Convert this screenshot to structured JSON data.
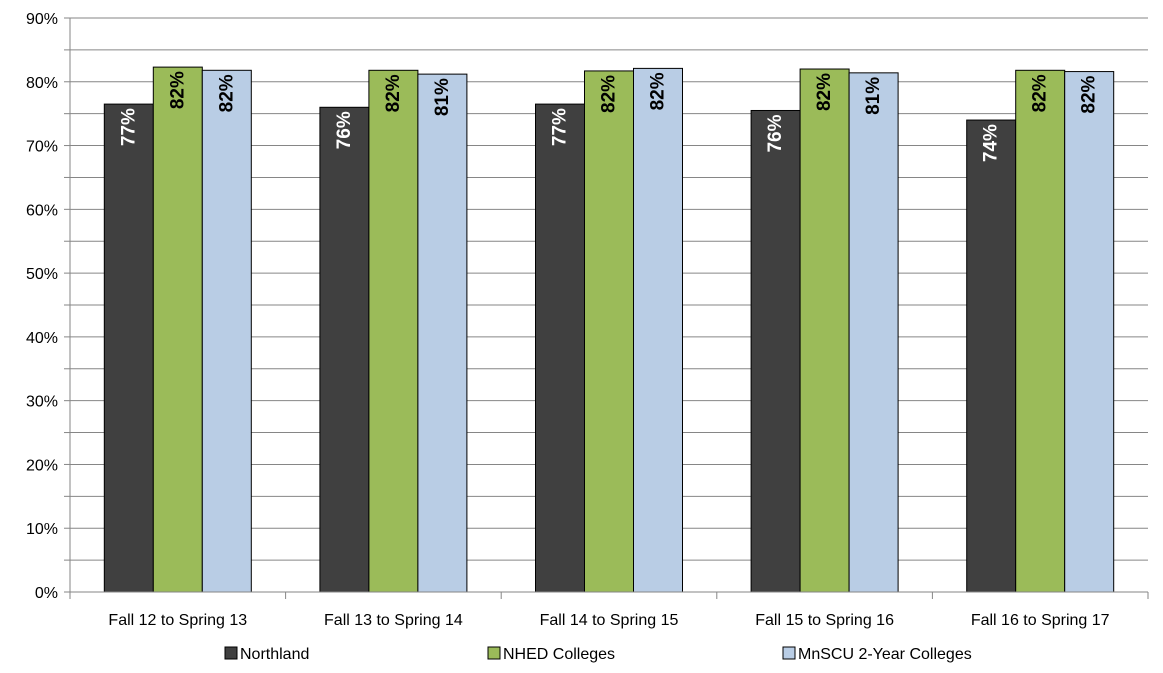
{
  "chart_data": {
    "type": "bar",
    "categories": [
      "Fall 12 to Spring 13",
      "Fall 13 to Spring 14",
      "Fall 14 to Spring 15",
      "Fall 15 to Spring 16",
      "Fall 16 to Spring 17"
    ],
    "series": [
      {
        "name": "Northland",
        "values": [
          76.5,
          76.0,
          76.5,
          75.5,
          74.0
        ],
        "labels": [
          "77%",
          "76%",
          "77%",
          "76%",
          "74%"
        ],
        "color": "#404040",
        "label_color": "#ffffff"
      },
      {
        "name": "NHED Colleges",
        "values": [
          82.3,
          81.8,
          81.7,
          82.0,
          81.8
        ],
        "labels": [
          "82%",
          "82%",
          "82%",
          "82%",
          "82%"
        ],
        "color": "#9bbb59",
        "label_color": "#000000"
      },
      {
        "name": "MnSCU 2-Year Colleges",
        "values": [
          81.8,
          81.2,
          82.1,
          81.4,
          81.6
        ],
        "labels": [
          "82%",
          "81%",
          "82%",
          "81%",
          "82%"
        ],
        "color": "#b9cde5",
        "label_color": "#000000"
      }
    ],
    "ylim": [
      0,
      90
    ],
    "yticks": [
      "0%",
      "10%",
      "20%",
      "30%",
      "40%",
      "50%",
      "60%",
      "70%",
      "80%",
      "90%"
    ],
    "grid": true,
    "legend": "bottom"
  }
}
